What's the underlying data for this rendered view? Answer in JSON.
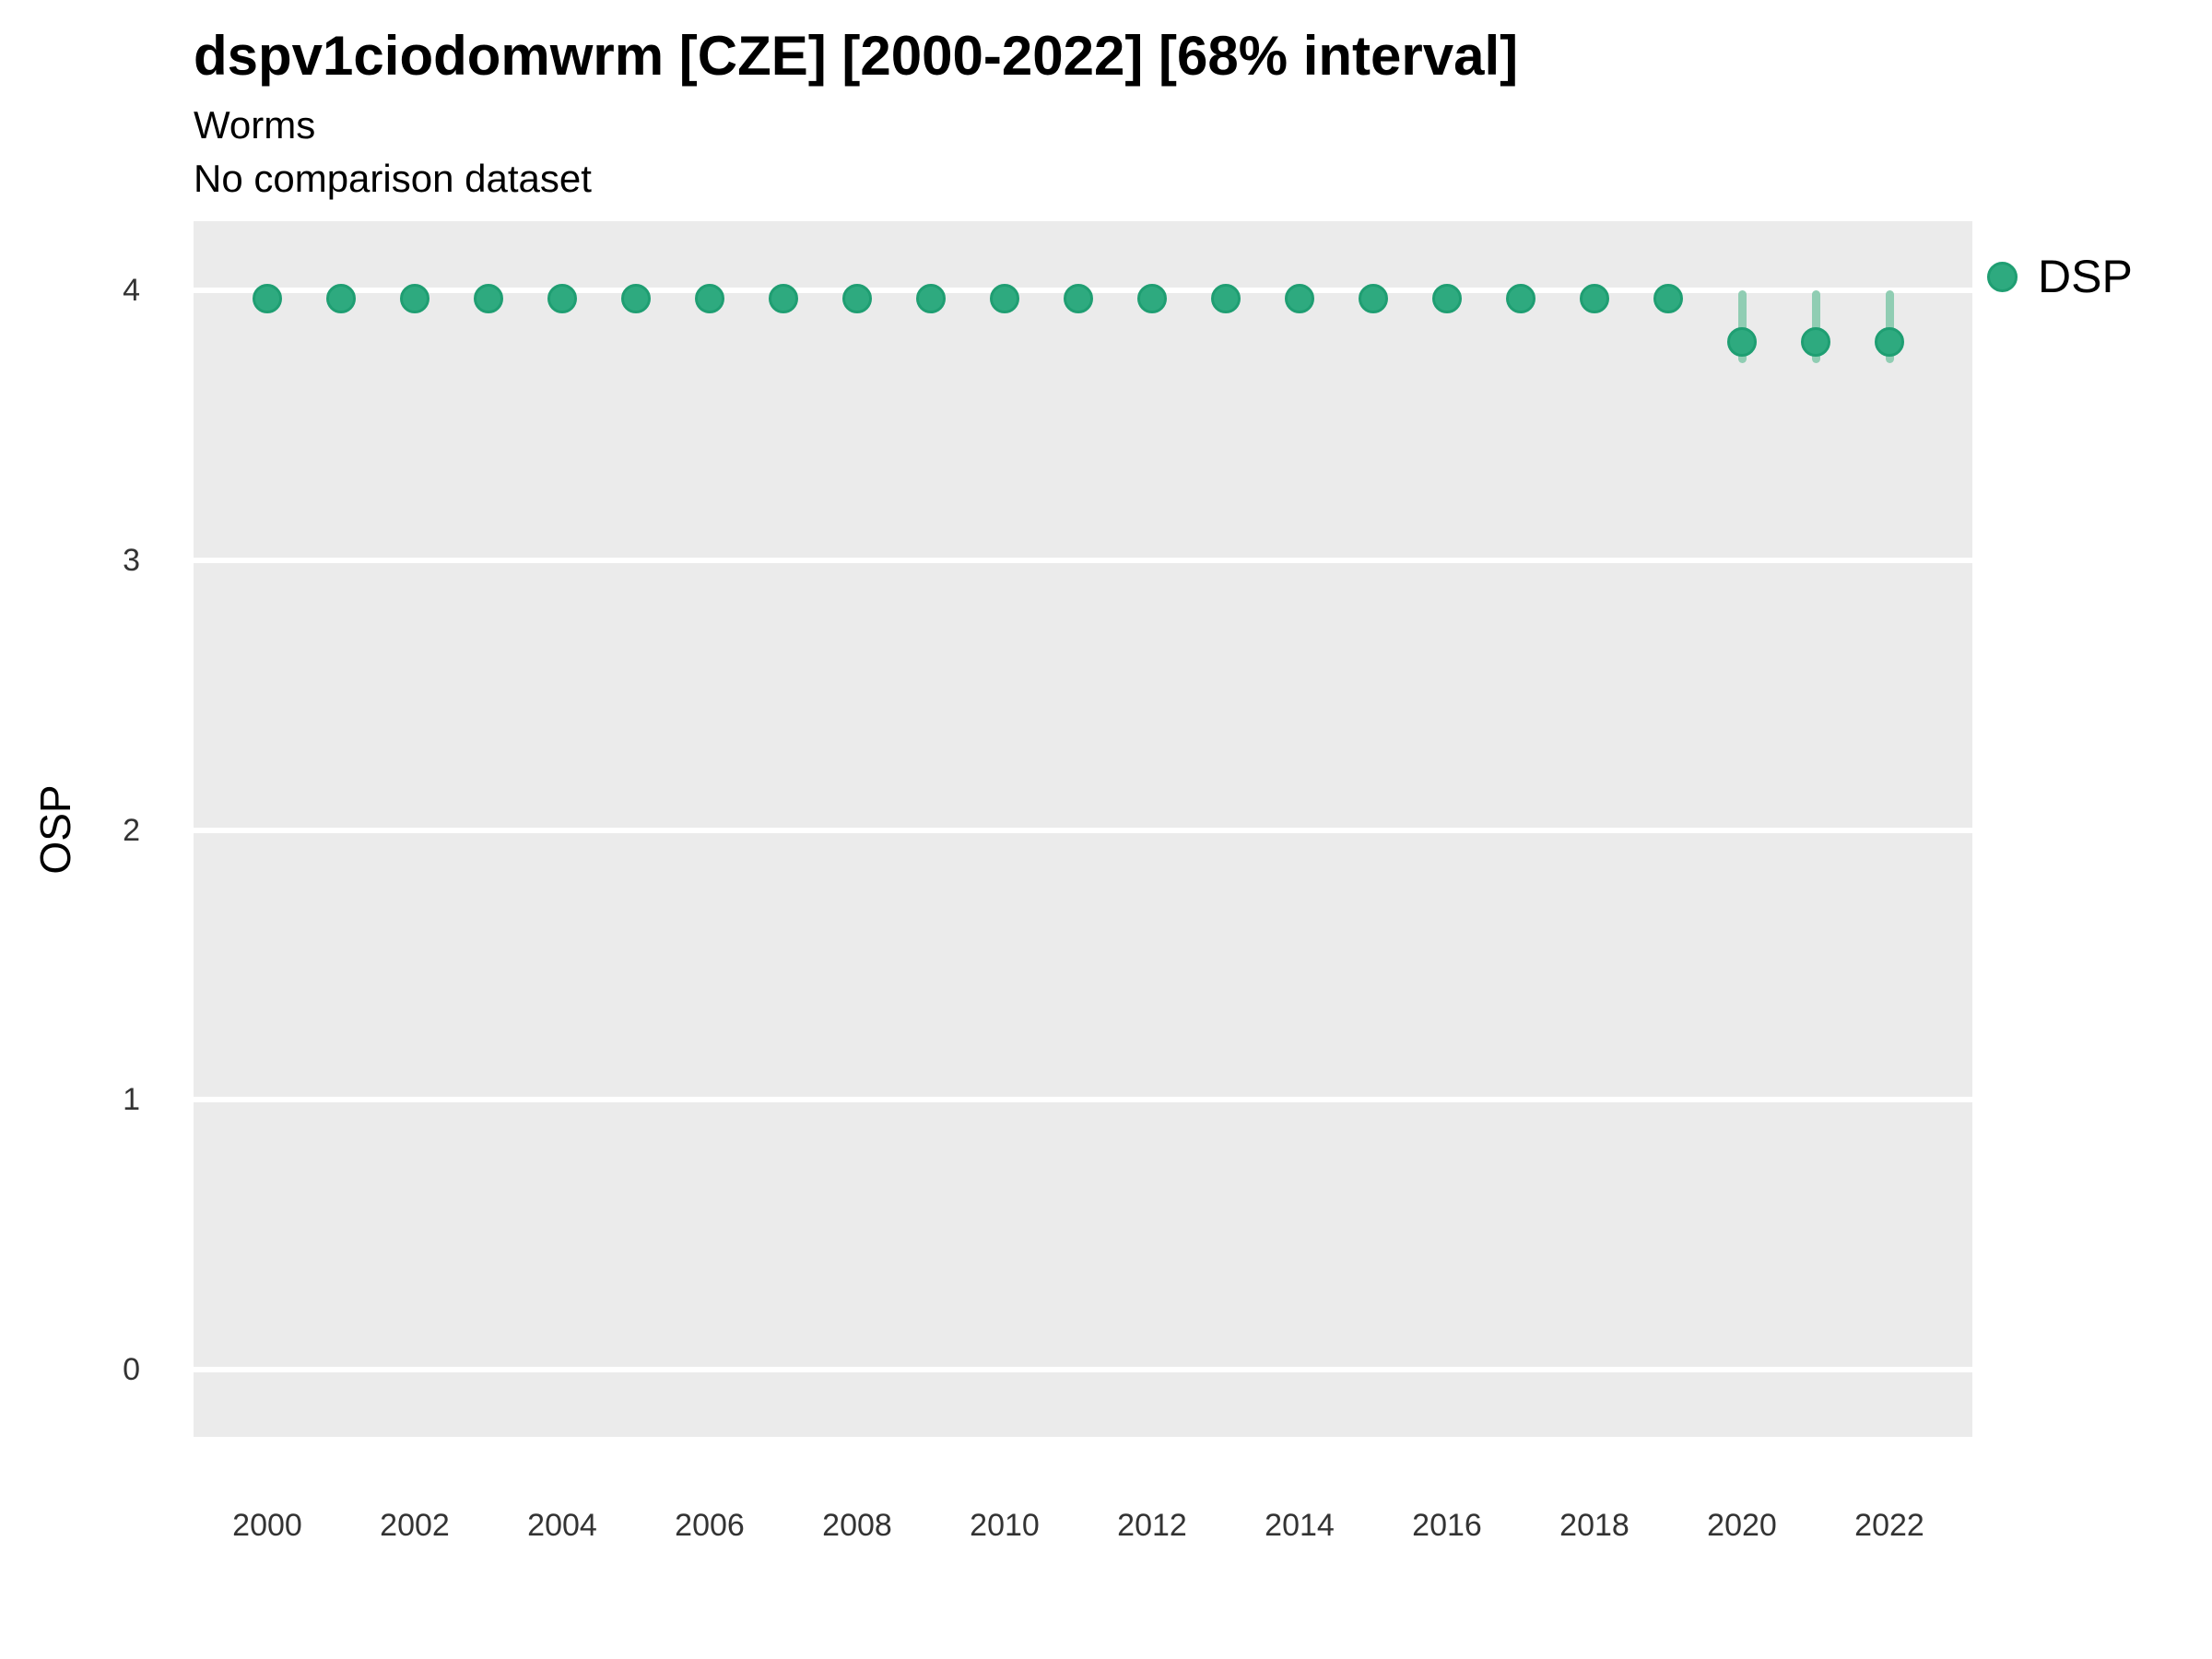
{
  "colors": {
    "point": "#2eaa7f",
    "point_border": "#1f9e72",
    "interval": "#90cdb3",
    "panel_background": "#ebebeb",
    "gridline": "#ffffff",
    "tick_text": "#333333",
    "title_text": "#000000"
  },
  "chart_data": {
    "type": "scatter",
    "subtype": "pointrange",
    "title": "dspv1ciodomwrm [CZE] [2000-2022] [68% interval]",
    "subtitle": "Worms",
    "annotation": "No comparison dataset",
    "xlabel": "",
    "ylabel": "OSP",
    "xlim": [
      1999,
      2023.1
    ],
    "ylim": [
      -0.25,
      4.26
    ],
    "y_ticks": [
      4,
      3,
      2,
      1,
      0
    ],
    "x_ticks": [
      2000,
      2002,
      2004,
      2006,
      2008,
      2010,
      2012,
      2014,
      2016,
      2018,
      2020,
      2022
    ],
    "grid": "horizontal major gridlines only, white on gray panel",
    "legend_position": "right",
    "interval_label": "68% interval",
    "series": [
      {
        "name": "DSP",
        "marker": "circle",
        "points": [
          {
            "x": 2000,
            "y": 3.97,
            "lo": 3.95,
            "hi": 3.99
          },
          {
            "x": 2001,
            "y": 3.97,
            "lo": 3.95,
            "hi": 3.99
          },
          {
            "x": 2002,
            "y": 3.97,
            "lo": 3.95,
            "hi": 3.99
          },
          {
            "x": 2003,
            "y": 3.97,
            "lo": 3.95,
            "hi": 3.99
          },
          {
            "x": 2004,
            "y": 3.97,
            "lo": 3.95,
            "hi": 3.99
          },
          {
            "x": 2005,
            "y": 3.97,
            "lo": 3.95,
            "hi": 3.99
          },
          {
            "x": 2006,
            "y": 3.97,
            "lo": 3.95,
            "hi": 3.99
          },
          {
            "x": 2007,
            "y": 3.97,
            "lo": 3.95,
            "hi": 3.99
          },
          {
            "x": 2008,
            "y": 3.97,
            "lo": 3.95,
            "hi": 3.99
          },
          {
            "x": 2009,
            "y": 3.97,
            "lo": 3.95,
            "hi": 3.99
          },
          {
            "x": 2010,
            "y": 3.97,
            "lo": 3.95,
            "hi": 3.99
          },
          {
            "x": 2011,
            "y": 3.97,
            "lo": 3.95,
            "hi": 3.99
          },
          {
            "x": 2012,
            "y": 3.97,
            "lo": 3.95,
            "hi": 3.99
          },
          {
            "x": 2013,
            "y": 3.97,
            "lo": 3.95,
            "hi": 3.99
          },
          {
            "x": 2014,
            "y": 3.97,
            "lo": 3.95,
            "hi": 3.99
          },
          {
            "x": 2015,
            "y": 3.97,
            "lo": 3.95,
            "hi": 3.99
          },
          {
            "x": 2016,
            "y": 3.97,
            "lo": 3.95,
            "hi": 3.99
          },
          {
            "x": 2017,
            "y": 3.97,
            "lo": 3.95,
            "hi": 3.99
          },
          {
            "x": 2018,
            "y": 3.97,
            "lo": 3.95,
            "hi": 3.99
          },
          {
            "x": 2019,
            "y": 3.97,
            "lo": 3.95,
            "hi": 3.99
          },
          {
            "x": 2020,
            "y": 3.81,
            "lo": 3.73,
            "hi": 4.0
          },
          {
            "x": 2021,
            "y": 3.81,
            "lo": 3.73,
            "hi": 4.0
          },
          {
            "x": 2022,
            "y": 3.81,
            "lo": 3.73,
            "hi": 4.0
          }
        ]
      }
    ]
  }
}
